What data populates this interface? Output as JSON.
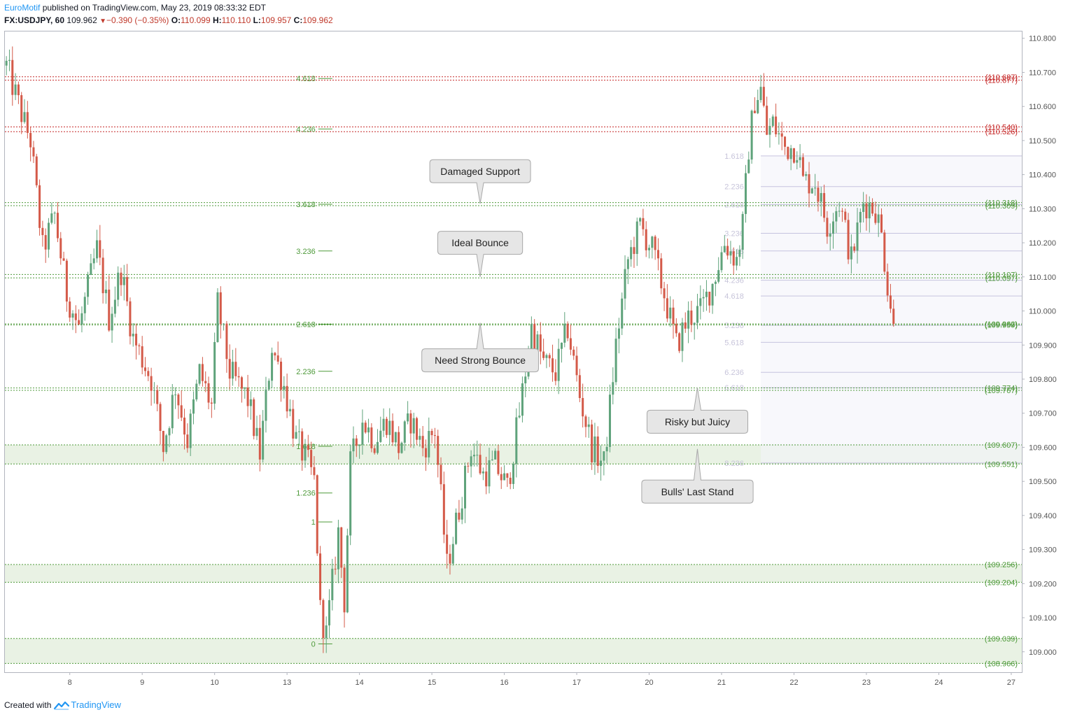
{
  "header": {
    "author": "EuroMotif",
    "published_text": "published on TradingView.com, May 23, 2019 08:33:32 EDT",
    "symbol": "FX:USDJPY, 60",
    "last": "109.962",
    "change": "−0.390 (−0.35%)",
    "o_label": "O:",
    "o_value": "110.099",
    "h_label": "H:",
    "h_value": "110.110",
    "l_label": "L:",
    "l_value": "109.957",
    "c_label": "C:",
    "c_value": "109.962",
    "down_arrow_icon": "triangle-down-icon"
  },
  "footer": {
    "created_with": "Created with",
    "brand": "TradingView",
    "logo_icon": "tradingview-logo-icon"
  },
  "colors": {
    "up": "#5fa37b",
    "down": "#d45a49",
    "fib_green": "#4e9a3a",
    "fib_red": "#c62828",
    "zone_fill": "#e9f2e4",
    "lavender": "#c6c3df",
    "axis": "#555555"
  },
  "chart_data": {
    "type": "candlestick",
    "ylim": [
      108.94,
      110.82
    ],
    "y_ticks": [
      "110.800",
      "110.700",
      "110.600",
      "110.500",
      "110.400",
      "110.300",
      "110.200",
      "110.100",
      "110.000",
      "109.900",
      "109.800",
      "109.700",
      "109.600",
      "109.500",
      "109.400",
      "109.300",
      "109.200",
      "109.100",
      "109.000"
    ],
    "x_ticks": [
      {
        "label": "8",
        "bar": 21
      },
      {
        "label": "9",
        "bar": 45
      },
      {
        "label": "10",
        "bar": 69
      },
      {
        "label": "13",
        "bar": 93
      },
      {
        "label": "14",
        "bar": 117
      },
      {
        "label": "15",
        "bar": 141
      },
      {
        "label": "16",
        "bar": 165
      },
      {
        "label": "17",
        "bar": 189
      },
      {
        "label": "20",
        "bar": 213
      },
      {
        "label": "21",
        "bar": 237
      },
      {
        "label": "22",
        "bar": 261
      },
      {
        "label": "23",
        "bar": 285
      },
      {
        "label": "24",
        "bar": 309
      },
      {
        "label": "27",
        "bar": 333
      }
    ],
    "x_bars": 337,
    "path": [
      [
        0,
        110.72
      ],
      [
        6,
        110.55
      ],
      [
        8,
        110.5
      ],
      [
        12,
        110.18
      ],
      [
        16,
        110.28
      ],
      [
        20,
        110.05
      ],
      [
        24,
        109.95
      ],
      [
        30,
        110.18
      ],
      [
        34,
        109.98
      ],
      [
        38,
        110.12
      ],
      [
        42,
        109.92
      ],
      [
        48,
        109.8
      ],
      [
        52,
        109.6
      ],
      [
        56,
        109.78
      ],
      [
        60,
        109.62
      ],
      [
        64,
        109.82
      ],
      [
        68,
        109.72
      ],
      [
        70,
        110.02
      ],
      [
        74,
        109.82
      ],
      [
        80,
        109.74
      ],
      [
        84,
        109.58
      ],
      [
        88,
        109.9
      ],
      [
        92,
        109.78
      ],
      [
        96,
        109.62
      ],
      [
        100,
        109.55
      ],
      [
        102,
        109.5
      ],
      [
        104,
        109.12
      ],
      [
        106,
        109.05
      ],
      [
        110,
        109.35
      ],
      [
        112,
        109.15
      ],
      [
        114,
        109.55
      ],
      [
        118,
        109.68
      ],
      [
        122,
        109.62
      ],
      [
        126,
        109.68
      ],
      [
        130,
        109.6
      ],
      [
        134,
        109.68
      ],
      [
        138,
        109.6
      ],
      [
        142,
        109.65
      ],
      [
        146,
        109.25
      ],
      [
        150,
        109.42
      ],
      [
        154,
        109.6
      ],
      [
        158,
        109.52
      ],
      [
        162,
        109.55
      ],
      [
        166,
        109.48
      ],
      [
        170,
        109.7
      ],
      [
        174,
        109.95
      ],
      [
        178,
        109.85
      ],
      [
        182,
        109.82
      ],
      [
        186,
        109.95
      ],
      [
        190,
        109.75
      ],
      [
        194,
        109.6
      ],
      [
        198,
        109.55
      ],
      [
        200,
        109.72
      ],
      [
        202,
        109.9
      ],
      [
        206,
        110.15
      ],
      [
        210,
        110.25
      ],
      [
        214,
        110.18
      ],
      [
        218,
        110.05
      ],
      [
        222,
        109.9
      ],
      [
        226,
        109.98
      ],
      [
        230,
        110.0
      ],
      [
        234,
        110.08
      ],
      [
        238,
        110.2
      ],
      [
        242,
        110.15
      ],
      [
        244,
        110.25
      ],
      [
        246,
        110.48
      ],
      [
        248,
        110.62
      ],
      [
        250,
        110.65
      ],
      [
        252,
        110.52
      ],
      [
        254,
        110.55
      ],
      [
        258,
        110.48
      ],
      [
        262,
        110.48
      ],
      [
        264,
        110.38
      ],
      [
        268,
        110.38
      ],
      [
        272,
        110.25
      ],
      [
        276,
        110.32
      ],
      [
        280,
        110.15
      ],
      [
        284,
        110.32
      ],
      [
        288,
        110.3
      ],
      [
        290,
        110.22
      ],
      [
        292,
        110.08
      ],
      [
        294,
        109.962
      ]
    ],
    "fib_levels_left": [
      {
        "label": "4.618",
        "price": 110.682,
        "bar_end": 108
      },
      {
        "label": "4.236",
        "price": 110.534,
        "bar_end": 108
      },
      {
        "label": "3.618",
        "price": 110.313,
        "bar_end": 108
      },
      {
        "label": "3.236",
        "price": 110.176,
        "bar_end": 108
      },
      {
        "label": "2.618",
        "price": 109.961,
        "bar_end": 108
      },
      {
        "label": "2.236",
        "price": 109.823,
        "bar_end": 108
      },
      {
        "label": "1.618",
        "price": 109.603,
        "bar_end": 108
      },
      {
        "label": "1.236",
        "price": 109.466,
        "bar_end": 108
      },
      {
        "label": "1",
        "price": 109.381,
        "bar_end": 108
      },
      {
        "label": "0",
        "price": 109.023,
        "bar_end": 108
      }
    ],
    "fib_levels_right": [
      {
        "label": "1.618",
        "price": 110.455
      },
      {
        "label": "2.236",
        "price": 110.365
      },
      {
        "label": "2.618",
        "price": 110.312
      },
      {
        "label": "3.236",
        "price": 110.228
      },
      {
        "label": "3.618",
        "price": 110.176
      },
      {
        "label": "4.236",
        "price": 110.09
      },
      {
        "label": "4.618",
        "price": 110.044
      },
      {
        "label": "5.236",
        "price": 109.958
      },
      {
        "label": "5.618",
        "price": 109.908
      },
      {
        "label": "6.236",
        "price": 109.82
      },
      {
        "label": "6.618",
        "price": 109.775
      },
      {
        "label": "8.236",
        "price": 109.554
      }
    ],
    "horizontal_lines": [
      {
        "label": "(110.687)",
        "price": 110.687,
        "color": "red"
      },
      {
        "label": "(110.677)",
        "price": 110.677,
        "color": "red"
      },
      {
        "label": "(110.540)",
        "price": 110.54,
        "color": "red"
      },
      {
        "label": "(110.526)",
        "price": 110.526,
        "color": "red"
      },
      {
        "label": "(110.318)",
        "price": 110.318,
        "color": "green"
      },
      {
        "label": "(110.309)",
        "price": 110.309,
        "color": "green"
      },
      {
        "label": "(110.107)",
        "price": 110.107,
        "color": "green"
      },
      {
        "label": "(110.097)",
        "price": 110.097,
        "color": "green"
      },
      {
        "label": "(109.962)",
        "price": 109.962,
        "color": "green"
      },
      {
        "label": "(109.959)",
        "price": 109.959,
        "color": "green"
      },
      {
        "label": "(109.774)",
        "price": 109.774,
        "color": "green"
      },
      {
        "label": "(109.767)",
        "price": 109.767,
        "color": "green"
      },
      {
        "label": "(109.607)",
        "price": 109.607,
        "color": "green"
      },
      {
        "label": "(109.551)",
        "price": 109.551,
        "color": "green"
      },
      {
        "label": "(109.256)",
        "price": 109.256,
        "color": "green"
      },
      {
        "label": "(109.204)",
        "price": 109.204,
        "color": "green"
      },
      {
        "label": "(109.039)",
        "price": 109.039,
        "color": "green"
      },
      {
        "label": "(108.966)",
        "price": 108.966,
        "color": "green"
      }
    ],
    "zones": [
      {
        "from": 109.551,
        "to": 109.607
      },
      {
        "from": 109.204,
        "to": 109.256
      },
      {
        "from": 108.966,
        "to": 109.039
      }
    ],
    "callouts": [
      {
        "text": "Damaged Support",
        "bar": 157,
        "price": 110.41,
        "pointer": "down",
        "tip_price": 110.315
      },
      {
        "text": "Ideal Bounce",
        "bar": 157,
        "price": 110.2,
        "pointer": "down",
        "tip_price": 110.1
      },
      {
        "text": "Need Strong Bounce",
        "bar": 157,
        "price": 109.855,
        "pointer": "up",
        "tip_price": 109.965
      },
      {
        "text": "Risky but Juicy",
        "bar": 229,
        "price": 109.675,
        "pointer": "up",
        "tip_price": 109.775
      },
      {
        "text": "Bulls' Last Stand",
        "bar": 229,
        "price": 109.47,
        "pointer": "up",
        "tip_price": 109.595
      }
    ]
  }
}
